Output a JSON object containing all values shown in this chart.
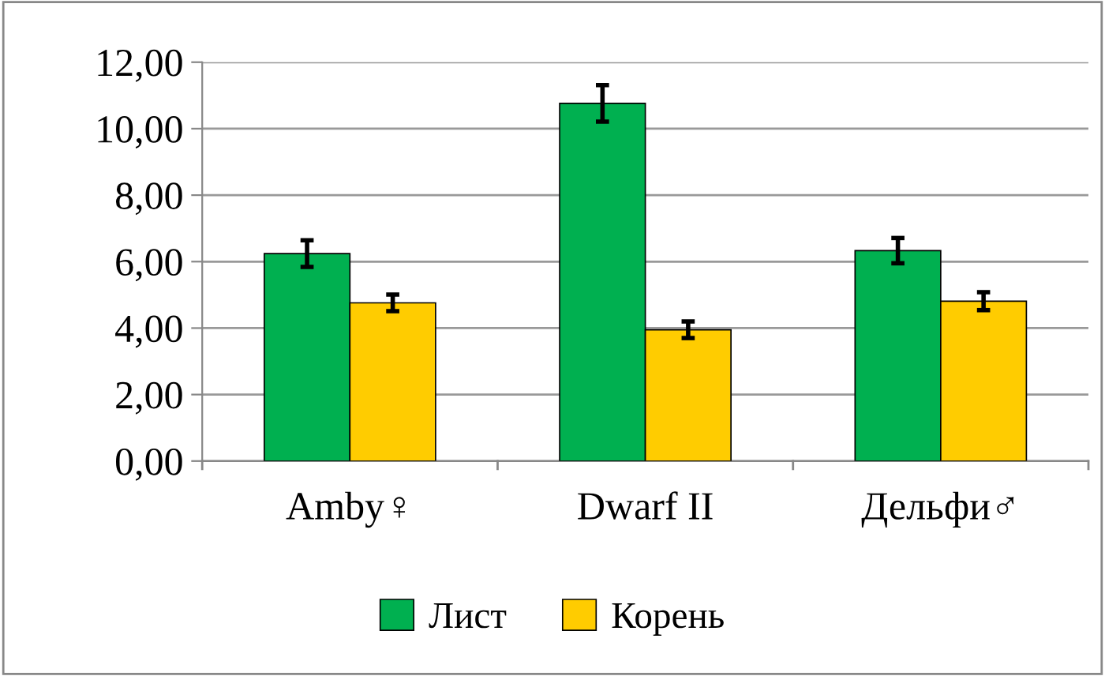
{
  "chart_data": {
    "type": "bar",
    "categories": [
      "Amby♀",
      "Dwarf II",
      "Дельфи♂"
    ],
    "series": [
      {
        "name": "Лист",
        "color": "#00b050",
        "values": [
          6.24,
          10.76,
          6.33
        ],
        "errors": [
          0.4,
          0.55,
          0.38
        ]
      },
      {
        "name": "Корень",
        "color": "#ffcc00",
        "values": [
          4.76,
          3.95,
          4.81
        ],
        "errors": [
          0.25,
          0.25,
          0.27
        ]
      }
    ],
    "ylim": [
      0,
      12
    ],
    "yticks": [
      {
        "value": 0,
        "label": "0,00"
      },
      {
        "value": 2,
        "label": "2,00"
      },
      {
        "value": 4,
        "label": "4,00"
      },
      {
        "value": 6,
        "label": "6,00"
      },
      {
        "value": 8,
        "label": "8,00"
      },
      {
        "value": 10,
        "label": "10,00"
      },
      {
        "value": 12,
        "label": "12,00"
      }
    ],
    "grid": "y",
    "legend": "bottom"
  }
}
